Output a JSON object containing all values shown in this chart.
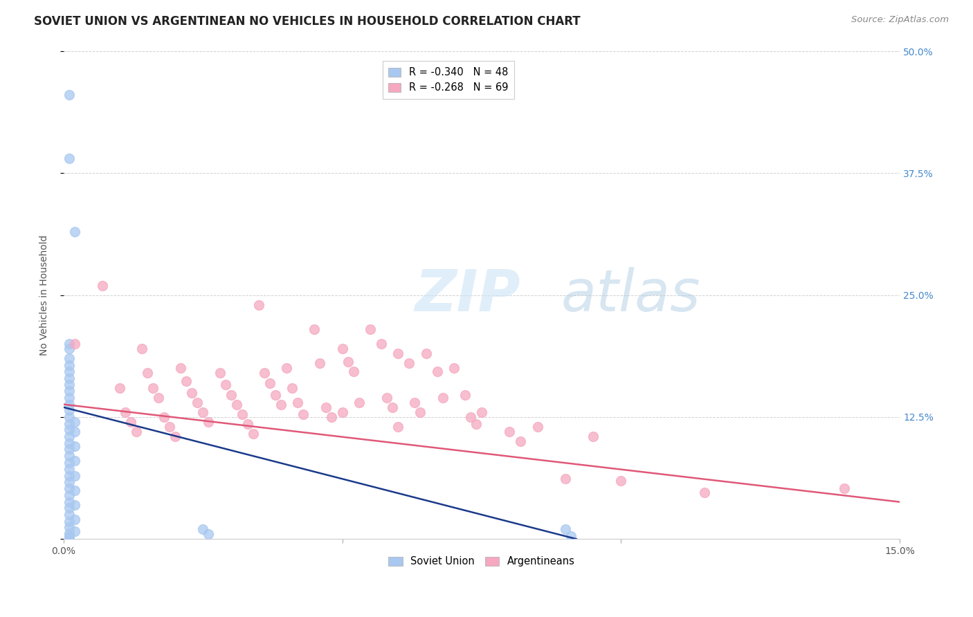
{
  "title": "SOVIET UNION VS ARGENTINEAN NO VEHICLES IN HOUSEHOLD CORRELATION CHART",
  "source": "Source: ZipAtlas.com",
  "ylabel": "No Vehicles in Household",
  "xlim": [
    0.0,
    0.15
  ],
  "ylim": [
    0.0,
    0.5
  ],
  "soviet_color": "#a8c8f0",
  "soviet_line_color": "#1a3a8a",
  "arg_color": "#f5a8c0",
  "arg_line_color": "#e05878",
  "soviet_line": [
    [
      0.0,
      0.135
    ],
    [
      0.092,
      0.0
    ]
  ],
  "arg_line": [
    [
      0.0,
      0.138
    ],
    [
      0.15,
      0.038
    ]
  ],
  "soviet_points": [
    [
      0.001,
      0.455
    ],
    [
      0.001,
      0.39
    ],
    [
      0.002,
      0.315
    ],
    [
      0.001,
      0.2
    ],
    [
      0.001,
      0.195
    ],
    [
      0.001,
      0.185
    ],
    [
      0.001,
      0.178
    ],
    [
      0.001,
      0.172
    ],
    [
      0.001,
      0.165
    ],
    [
      0.001,
      0.158
    ],
    [
      0.001,
      0.152
    ],
    [
      0.001,
      0.145
    ],
    [
      0.001,
      0.138
    ],
    [
      0.001,
      0.132
    ],
    [
      0.001,
      0.125
    ],
    [
      0.001,
      0.118
    ],
    [
      0.001,
      0.112
    ],
    [
      0.001,
      0.105
    ],
    [
      0.001,
      0.098
    ],
    [
      0.001,
      0.092
    ],
    [
      0.001,
      0.085
    ],
    [
      0.001,
      0.078
    ],
    [
      0.001,
      0.072
    ],
    [
      0.001,
      0.065
    ],
    [
      0.001,
      0.058
    ],
    [
      0.001,
      0.052
    ],
    [
      0.001,
      0.045
    ],
    [
      0.001,
      0.038
    ],
    [
      0.001,
      0.032
    ],
    [
      0.001,
      0.025
    ],
    [
      0.001,
      0.018
    ],
    [
      0.001,
      0.012
    ],
    [
      0.001,
      0.006
    ],
    [
      0.001,
      0.003
    ],
    [
      0.001,
      0.001
    ],
    [
      0.002,
      0.12
    ],
    [
      0.002,
      0.11
    ],
    [
      0.002,
      0.095
    ],
    [
      0.002,
      0.08
    ],
    [
      0.002,
      0.065
    ],
    [
      0.002,
      0.05
    ],
    [
      0.002,
      0.035
    ],
    [
      0.002,
      0.02
    ],
    [
      0.002,
      0.008
    ],
    [
      0.025,
      0.01
    ],
    [
      0.026,
      0.005
    ],
    [
      0.09,
      0.01
    ],
    [
      0.091,
      0.003
    ]
  ],
  "arg_points": [
    [
      0.002,
      0.2
    ],
    [
      0.007,
      0.26
    ],
    [
      0.01,
      0.155
    ],
    [
      0.011,
      0.13
    ],
    [
      0.012,
      0.12
    ],
    [
      0.013,
      0.11
    ],
    [
      0.014,
      0.195
    ],
    [
      0.015,
      0.17
    ],
    [
      0.016,
      0.155
    ],
    [
      0.017,
      0.145
    ],
    [
      0.018,
      0.125
    ],
    [
      0.019,
      0.115
    ],
    [
      0.02,
      0.105
    ],
    [
      0.021,
      0.175
    ],
    [
      0.022,
      0.162
    ],
    [
      0.023,
      0.15
    ],
    [
      0.024,
      0.14
    ],
    [
      0.025,
      0.13
    ],
    [
      0.026,
      0.12
    ],
    [
      0.028,
      0.17
    ],
    [
      0.029,
      0.158
    ],
    [
      0.03,
      0.148
    ],
    [
      0.031,
      0.138
    ],
    [
      0.032,
      0.128
    ],
    [
      0.033,
      0.118
    ],
    [
      0.034,
      0.108
    ],
    [
      0.035,
      0.24
    ],
    [
      0.036,
      0.17
    ],
    [
      0.037,
      0.16
    ],
    [
      0.038,
      0.148
    ],
    [
      0.039,
      0.138
    ],
    [
      0.04,
      0.175
    ],
    [
      0.041,
      0.155
    ],
    [
      0.042,
      0.14
    ],
    [
      0.043,
      0.128
    ],
    [
      0.045,
      0.215
    ],
    [
      0.046,
      0.18
    ],
    [
      0.047,
      0.135
    ],
    [
      0.048,
      0.125
    ],
    [
      0.05,
      0.195
    ],
    [
      0.051,
      0.182
    ],
    [
      0.052,
      0.172
    ],
    [
      0.053,
      0.14
    ],
    [
      0.055,
      0.215
    ],
    [
      0.057,
      0.2
    ],
    [
      0.058,
      0.145
    ],
    [
      0.059,
      0.135
    ],
    [
      0.06,
      0.19
    ],
    [
      0.062,
      0.18
    ],
    [
      0.063,
      0.14
    ],
    [
      0.064,
      0.13
    ],
    [
      0.065,
      0.19
    ],
    [
      0.067,
      0.172
    ],
    [
      0.068,
      0.145
    ],
    [
      0.07,
      0.175
    ],
    [
      0.072,
      0.148
    ],
    [
      0.073,
      0.125
    ],
    [
      0.074,
      0.118
    ],
    [
      0.075,
      0.13
    ],
    [
      0.08,
      0.11
    ],
    [
      0.082,
      0.1
    ],
    [
      0.085,
      0.115
    ],
    [
      0.09,
      0.062
    ],
    [
      0.095,
      0.105
    ],
    [
      0.1,
      0.06
    ],
    [
      0.115,
      0.048
    ],
    [
      0.14,
      0.052
    ],
    [
      0.05,
      0.13
    ],
    [
      0.06,
      0.115
    ]
  ]
}
